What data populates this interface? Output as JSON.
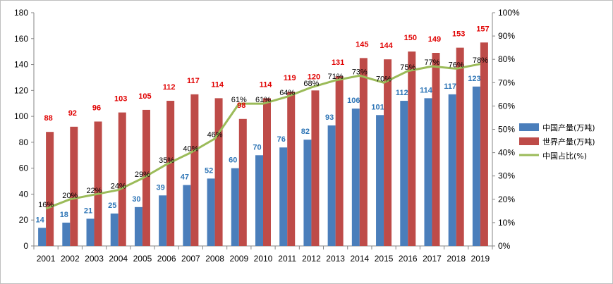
{
  "chart_data": {
    "type": "bar",
    "categories": [
      "2001",
      "2002",
      "2003",
      "2004",
      "2005",
      "2006",
      "2007",
      "2008",
      "2009",
      "2010",
      "2011",
      "2012",
      "2013",
      "2014",
      "2015",
      "2016",
      "2017",
      "2018",
      "2019"
    ],
    "series": [
      {
        "name": "中国产量(万吨)",
        "type": "bar",
        "axis": "left",
        "color": "#4a7ebb",
        "values": [
          14,
          18,
          21,
          25,
          30,
          39,
          47,
          52,
          60,
          70,
          76,
          82,
          93,
          106,
          101,
          112,
          114,
          117,
          123
        ],
        "labels": [
          "14",
          "18",
          "21",
          "25",
          "30",
          "39",
          "47",
          "52",
          "60",
          "70",
          "76",
          "82",
          "93",
          "106",
          "101",
          "112",
          "114",
          "117",
          "123"
        ]
      },
      {
        "name": "世界产量(万吨)",
        "type": "bar",
        "axis": "right-aligned-left",
        "color": "#be4b48",
        "values": [
          88,
          92,
          96,
          103,
          105,
          112,
          117,
          114,
          98,
          114,
          119,
          120,
          131,
          145,
          144,
          150,
          149,
          153,
          157
        ],
        "labels": [
          "88",
          "92",
          "96",
          "103",
          "105",
          "112",
          "117",
          "114",
          "98",
          "114",
          "119",
          "120",
          "131",
          "145",
          "144",
          "150",
          "149",
          "153",
          "157"
        ]
      },
      {
        "name": "中国占比(%)",
        "type": "line",
        "axis": "right",
        "color": "#9bbb59",
        "values": [
          16,
          20,
          22,
          24,
          29,
          35,
          40,
          46,
          61,
          61,
          64,
          68,
          71,
          73,
          70,
          75,
          77,
          76,
          78
        ],
        "labels": [
          "16%",
          "20%",
          "22%",
          "24%",
          "29%",
          "35%",
          "40%",
          "46%",
          "61%",
          "61%",
          "64%",
          "68%",
          "71%",
          "73%",
          "70%",
          "75%",
          "77%",
          "76%",
          "78%"
        ]
      }
    ],
    "ylim": [
      0,
      180
    ],
    "yticks": [
      "0",
      "20",
      "40",
      "60",
      "80",
      "100",
      "120",
      "140",
      "160",
      "180"
    ],
    "y2lim": [
      0,
      100
    ],
    "y2ticks": [
      "0%",
      "10%",
      "20%",
      "30%",
      "40%",
      "50%",
      "60%",
      "70%",
      "80%",
      "90%",
      "100%"
    ],
    "grid": false,
    "legend": "right",
    "title": "",
    "xlabel": "",
    "ylabel": ""
  }
}
